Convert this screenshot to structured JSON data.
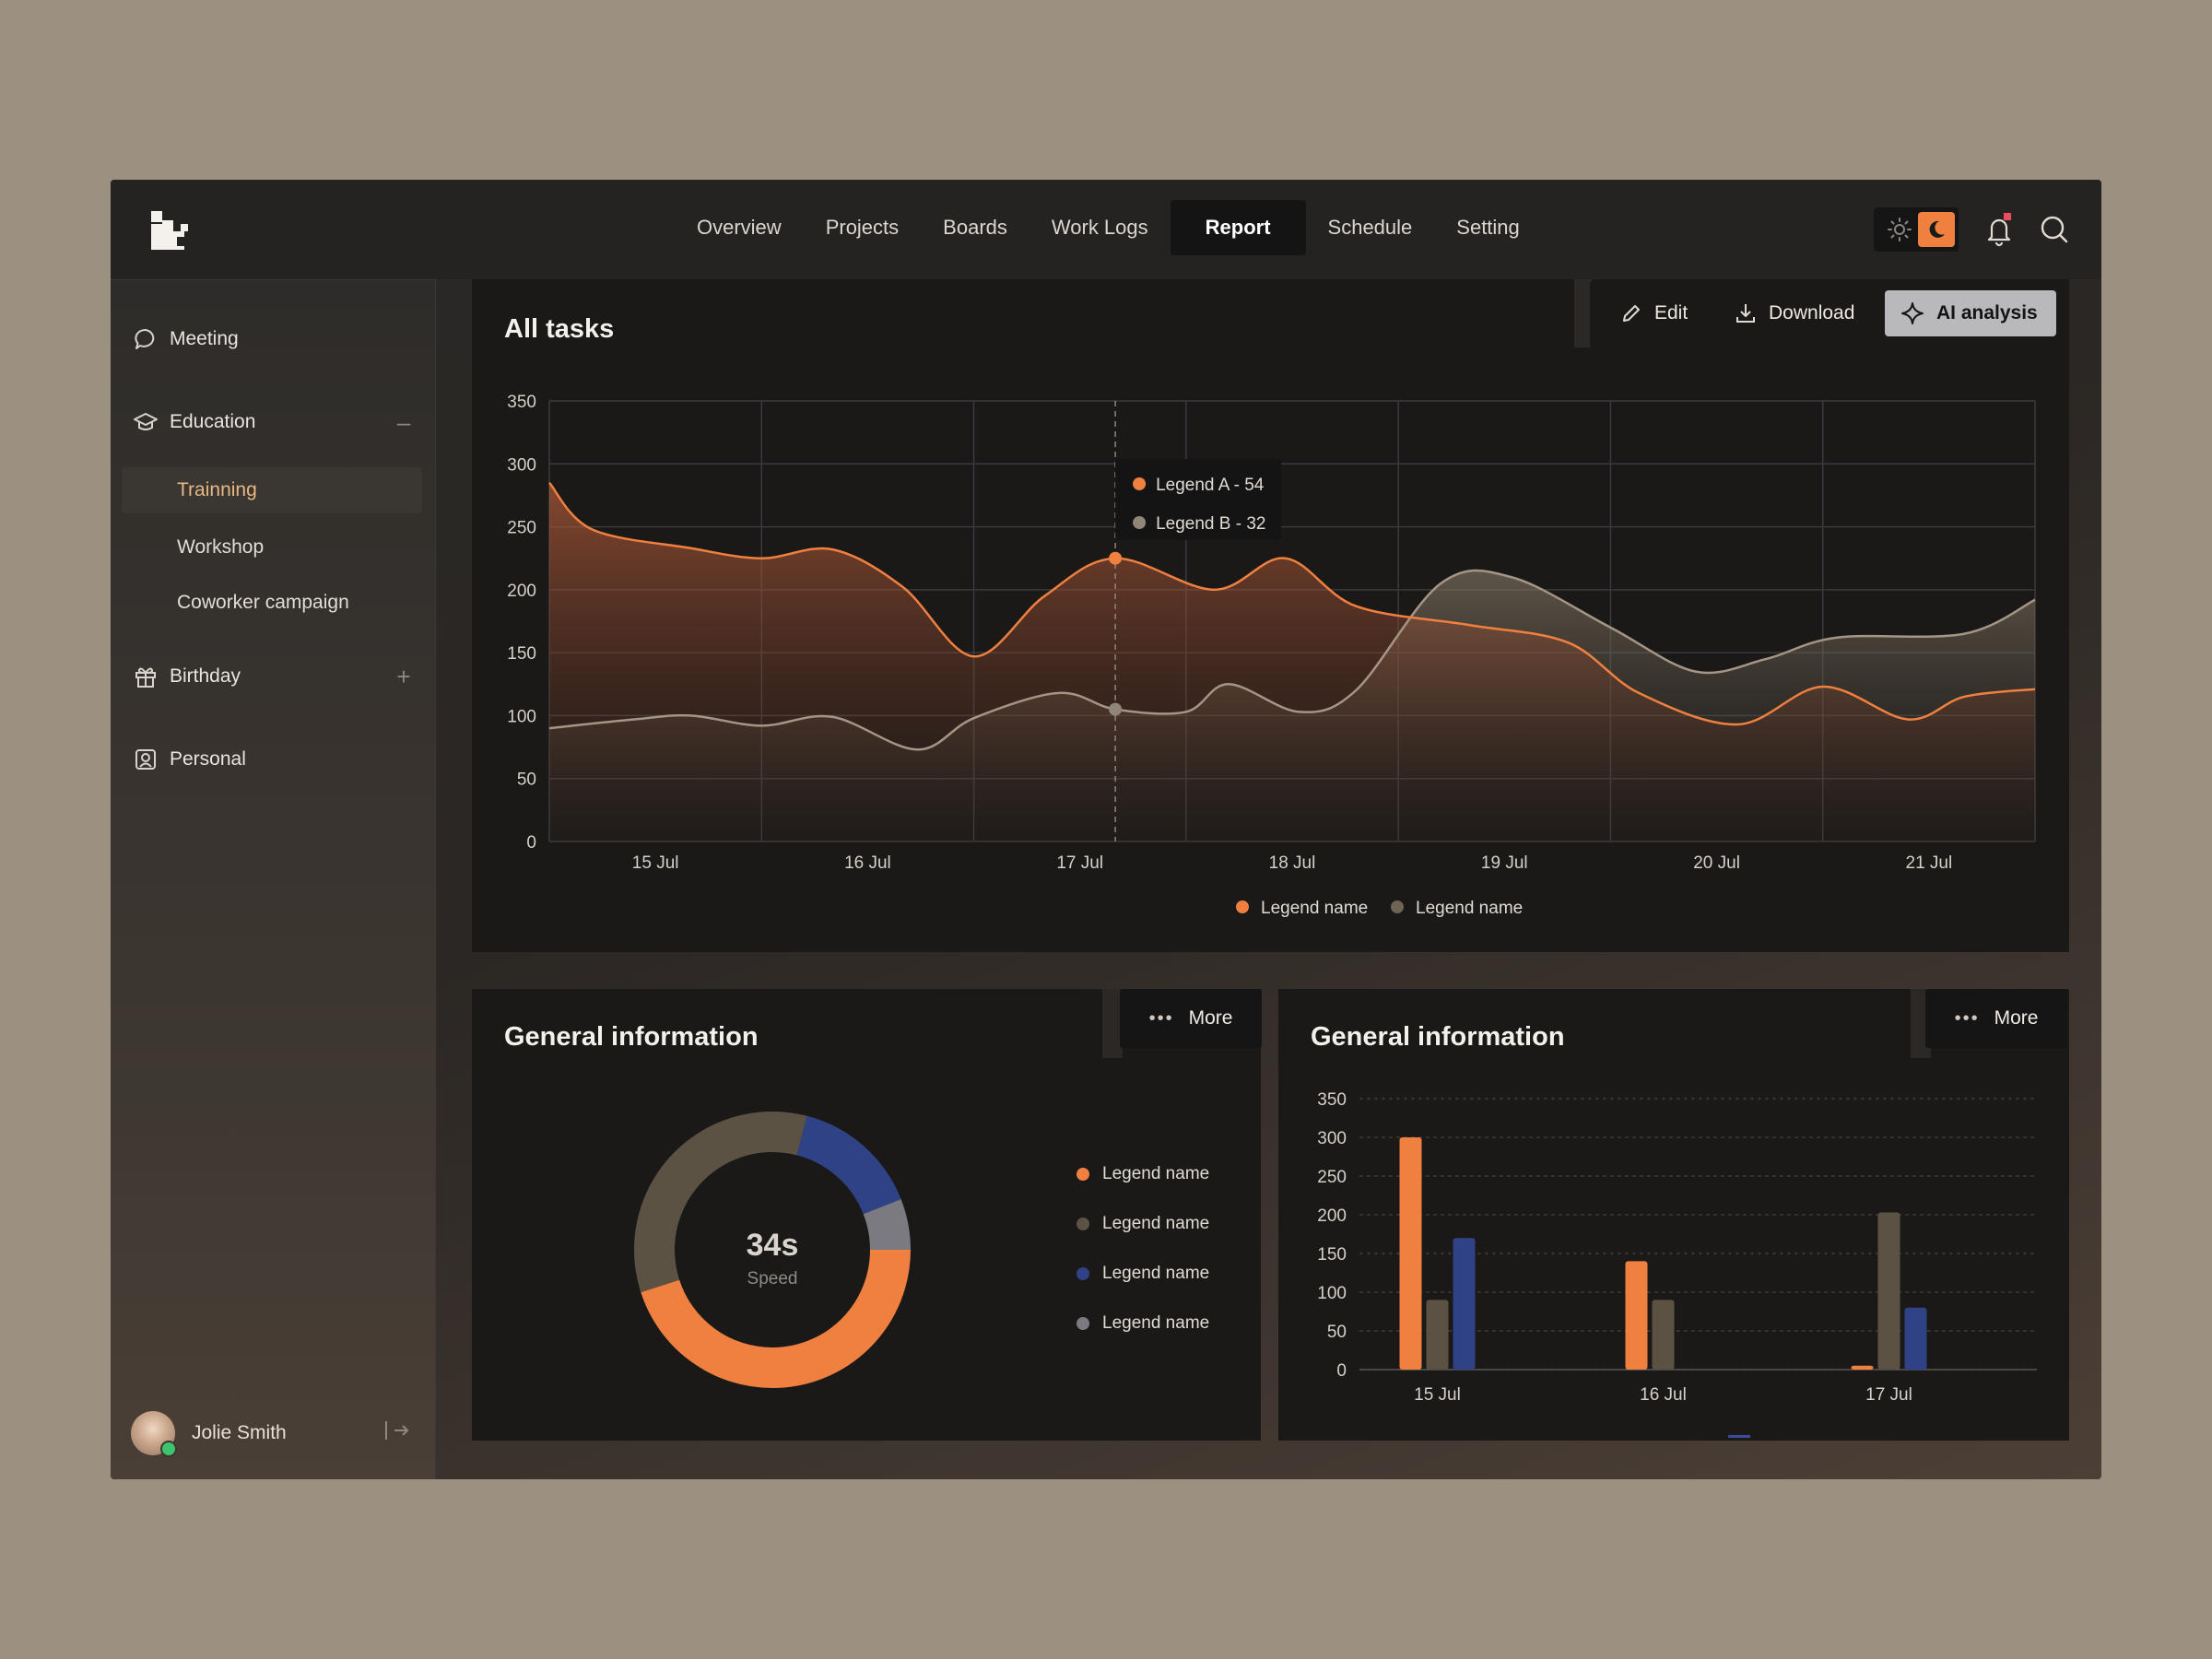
{
  "nav": {
    "items": [
      "Overview",
      "Projects",
      "Boards",
      "Work Logs",
      "Report",
      "Schedule",
      "Setting"
    ],
    "active": "Report"
  },
  "sidebar": {
    "items": [
      {
        "label": "Meeting",
        "icon": "chat-bubble-icon"
      },
      {
        "label": "Education",
        "icon": "graduation-cap-icon",
        "action": "collapse"
      },
      {
        "label": "Birthday",
        "icon": "gift-icon",
        "action": "expand"
      },
      {
        "label": "Personal",
        "icon": "person-card-icon"
      }
    ],
    "sub_items": [
      "Trainning",
      "Workshop",
      "Coworker campaign"
    ],
    "active_sub": "Trainning"
  },
  "user": {
    "name": "Jolie Smith"
  },
  "toolbar": {
    "edit": "Edit",
    "download": "Download",
    "ai": "AI analysis"
  },
  "main_chart": {
    "title": "All tasks",
    "tooltip": [
      "Legend A - 54",
      "Legend B - 32"
    ],
    "legend": [
      "Legend name",
      "Legend name"
    ],
    "colors": {
      "a": "#f08040",
      "b": "#a49585"
    }
  },
  "donut_panel": {
    "title": "General information",
    "more": "More",
    "center_value": "34s",
    "center_label": "Speed",
    "legend": [
      "Legend name",
      "Legend name",
      "Legend name",
      "Legend name"
    ],
    "colors": [
      "#f08040",
      "#5c5244",
      "#2f4286",
      "#7a7a80"
    ]
  },
  "bar_panel": {
    "title": "General information",
    "more": "More"
  },
  "chart_data": [
    {
      "type": "area",
      "title": "All tasks",
      "x": [
        "15 Jul",
        "16 Jul",
        "17 Jul",
        "18 Jul",
        "19 Jul",
        "20 Jul",
        "21 Jul"
      ],
      "ylim": [
        0,
        350
      ],
      "yticks": [
        0,
        50,
        100,
        150,
        200,
        250,
        300,
        350
      ],
      "grid": true,
      "legend_position": "bottom",
      "series": [
        {
          "name": "Legend name",
          "color": "#f08040",
          "points": [
            [
              0,
              285
            ],
            [
              0.3,
              248
            ],
            [
              1,
              233
            ],
            [
              1.5,
              225
            ],
            [
              2,
              232
            ],
            [
              2.5,
              202
            ],
            [
              3,
              147
            ],
            [
              3.5,
              195
            ],
            [
              4,
              225
            ],
            [
              4.7,
              200
            ],
            [
              5.2,
              225
            ],
            [
              5.7,
              187
            ],
            [
              6.5,
              172
            ],
            [
              7.2,
              158
            ],
            [
              7.7,
              118
            ],
            [
              8.4,
              93
            ],
            [
              9,
              123
            ],
            [
              9.6,
              97
            ],
            [
              10,
              115
            ],
            [
              10.5,
              121
            ]
          ]
        },
        {
          "name": "Legend name",
          "color": "#a49585",
          "points": [
            [
              0,
              90
            ],
            [
              0.6,
              97
            ],
            [
              1,
              100
            ],
            [
              1.5,
              92
            ],
            [
              2,
              99
            ],
            [
              2.6,
              73
            ],
            [
              3,
              98
            ],
            [
              3.6,
              118
            ],
            [
              4,
              105
            ],
            [
              4.5,
              103
            ],
            [
              4.8,
              125
            ],
            [
              5.3,
              103
            ],
            [
              5.7,
              120
            ],
            [
              6.3,
              205
            ],
            [
              6.8,
              210
            ],
            [
              7.5,
              170
            ],
            [
              8.1,
              135
            ],
            [
              8.6,
              145
            ],
            [
              9.1,
              162
            ],
            [
              10,
              165
            ],
            [
              10.5,
              192
            ]
          ]
        }
      ],
      "x_ticks_at": [
        0.75,
        2.25,
        3.75,
        5.25,
        6.75,
        8.25,
        9.75
      ],
      "x_range": [
        0,
        10.5
      ]
    },
    {
      "type": "pie",
      "donut": true,
      "categories": [
        "Legend name",
        "Legend name",
        "Legend name",
        "Legend name"
      ],
      "values": [
        45,
        34,
        15,
        6
      ],
      "center_text": "34s"
    },
    {
      "type": "bar",
      "categories": [
        "15 Jul",
        "16 Jul",
        "17 Jul"
      ],
      "ylim": [
        0,
        350
      ],
      "yticks": [
        0,
        50,
        100,
        150,
        200,
        250,
        300,
        350
      ],
      "series": [
        {
          "color": "#f08040",
          "values": [
            300,
            140,
            5
          ]
        },
        {
          "color": "#5c5244",
          "values": [
            90,
            90,
            203
          ]
        },
        {
          "color": "#2f4286",
          "values": [
            170,
            0,
            80
          ]
        }
      ]
    }
  ]
}
